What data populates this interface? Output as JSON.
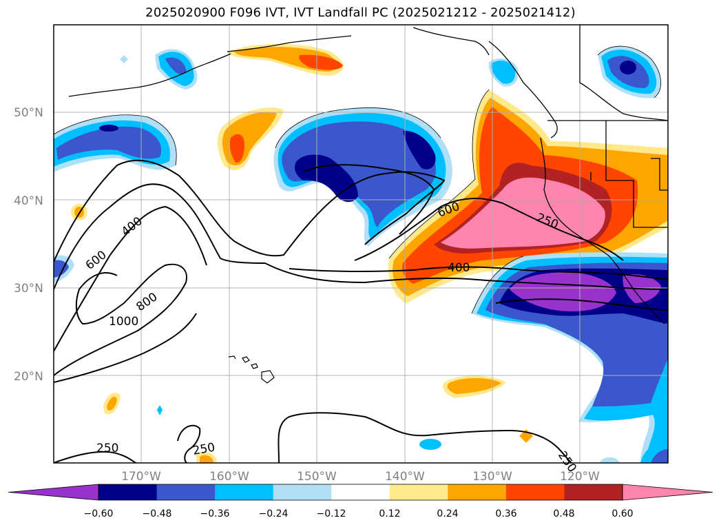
{
  "title": "2025020900 F096 IVT, IVT Landfall PC (2025021212 - 2025021412)",
  "lat_labels": [
    "50°N",
    "40°N",
    "30°N",
    "20°N"
  ],
  "lon_labels": [
    "170°W",
    "160°W",
    "150°W",
    "140°W",
    "130°W",
    "120°W"
  ],
  "contour_labels": [
    "400",
    "600",
    "1000",
    "800",
    "600",
    "400",
    "250",
    "250",
    "250",
    "250"
  ],
  "colorbar": {
    "ticks": [
      "−0.60",
      "−0.48",
      "−0.36",
      "−0.24",
      "−0.12",
      "0.12",
      "0.24",
      "0.36",
      "0.48",
      "0.60"
    ],
    "colors": [
      "#9932cc",
      "#00008b",
      "#3a57cc",
      "#00bfff",
      "#b0e0f8",
      "#ffffff",
      "#ffe98a",
      "#ffa500",
      "#ff4500",
      "#b22222",
      "#ff85b0"
    ]
  }
}
